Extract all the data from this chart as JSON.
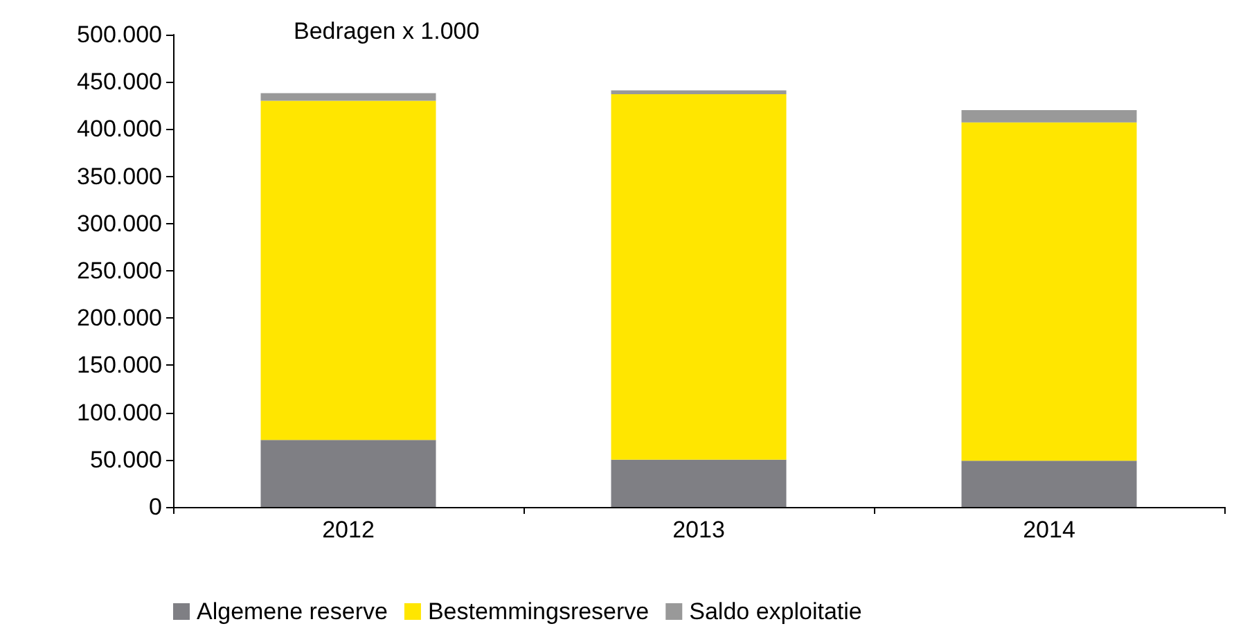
{
  "chart_data": {
    "type": "bar",
    "stacked": true,
    "annotations": [
      "Bedragen x 1.000"
    ],
    "categories": [
      "2012",
      "2013",
      "2014"
    ],
    "series": [
      {
        "name": "Algemene reserve",
        "color": "#7f7f84",
        "values": [
          71000,
          50000,
          49000
        ]
      },
      {
        "name": "Bestemmingsreserve",
        "color": "#ffe600",
        "values": [
          359000,
          387000,
          358000
        ]
      },
      {
        "name": "Saldo exploitatie",
        "color": "#999999",
        "values": [
          8000,
          4000,
          13000
        ]
      }
    ],
    "ylim": [
      0,
      500000
    ],
    "yticks": [
      {
        "value": 0,
        "label": "0"
      },
      {
        "value": 50000,
        "label": "50.000"
      },
      {
        "value": 100000,
        "label": "100.000"
      },
      {
        "value": 150000,
        "label": "150.000"
      },
      {
        "value": 200000,
        "label": "200.000"
      },
      {
        "value": 250000,
        "label": "250.000"
      },
      {
        "value": 300000,
        "label": "300.000"
      },
      {
        "value": 350000,
        "label": "350.000"
      },
      {
        "value": 400000,
        "label": "400.000"
      },
      {
        "value": 450000,
        "label": "450.000"
      },
      {
        "value": 500000,
        "label": "500.000"
      }
    ],
    "grid": false,
    "legend": "bottom"
  }
}
